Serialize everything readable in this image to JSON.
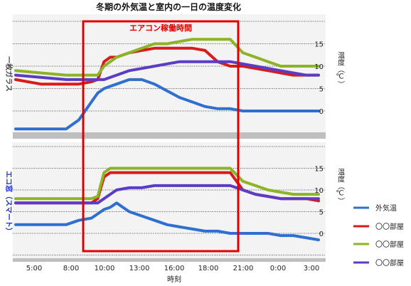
{
  "chart_data": {
    "type": "line",
    "title": "冬期の外気温と室内の一日の温度変化",
    "highlight": {
      "label": "エアコン稼働時間",
      "x_range": [
        "9:00",
        "21:00"
      ],
      "color": "#e00000"
    },
    "xlabel": "時刻",
    "x_ticks": [
      "5:00",
      "8:00",
      "10:00",
      "13:00",
      "16:00",
      "18:00",
      "21:00",
      "0:00",
      "3:00"
    ],
    "ylabel": "温度（℃）",
    "y_ticks": [
      "0",
      "5",
      "10",
      "15"
    ],
    "ylim": [
      -4,
      20
    ],
    "legend": [
      {
        "name": "外気温",
        "color": "#2f6fd0"
      },
      {
        "name": "〇〇部屋",
        "color": "#d81b1b"
      },
      {
        "name": "〇〇部屋",
        "color": "#8db327"
      },
      {
        "name": "〇〇部屋",
        "color": "#5b3cc4"
      }
    ],
    "panels": [
      {
        "label": "一枚ガラス",
        "x": [
          "3:00",
          "5:00",
          "7:00",
          "8:00",
          "9:00",
          "9:30",
          "10:00",
          "10:30",
          "11:00",
          "12:00",
          "13:00",
          "14:00",
          "15:00",
          "16:00",
          "17:00",
          "18:00",
          "19:00",
          "20:00",
          "21:00",
          "22:00",
          "23:00",
          "0:00",
          "1:00",
          "2:00",
          "3:00"
        ],
        "series": [
          {
            "values": [
              -4,
              -4,
              -4,
              -2,
              2,
              4,
              5,
              5.5,
              6,
              7,
              7,
              6,
              4.5,
              3,
              2,
              1,
              0.5,
              0.5,
              0,
              0,
              0,
              0,
              0,
              0,
              0
            ]
          },
          {
            "values": [
              7,
              6,
              6,
              6,
              6.5,
              7,
              11,
              12,
              12,
              13,
              13.5,
              14,
              14,
              14,
              14,
              13.5,
              11,
              10,
              10,
              9.5,
              9,
              8.5,
              8,
              8,
              8
            ]
          },
          {
            "values": [
              9,
              8.5,
              8,
              8,
              8,
              8,
              10,
              11,
              12,
              13,
              14,
              15,
              15,
              15.5,
              16,
              16,
              16,
              16,
              13,
              12,
              11,
              10,
              10,
              10,
              10
            ]
          },
          {
            "values": [
              8,
              7.5,
              7,
              7,
              7,
              7,
              7,
              7.5,
              8,
              9,
              9.5,
              10,
              10.5,
              11,
              11,
              11,
              11,
              11,
              10.5,
              10,
              9.5,
              9,
              8.5,
              8,
              8
            ]
          }
        ]
      },
      {
        "label": "エコ窓（スマート）",
        "x": [
          "3:00",
          "5:00",
          "7:00",
          "8:00",
          "9:00",
          "9:30",
          "10:00",
          "10:30",
          "11:00",
          "12:00",
          "13:00",
          "14:00",
          "15:00",
          "16:00",
          "17:00",
          "18:00",
          "19:00",
          "20:00",
          "21:00",
          "22:00",
          "23:00",
          "0:00",
          "1:00",
          "2:00",
          "3:00"
        ],
        "series": [
          {
            "values": [
              2,
              2,
              2,
              3,
              3.5,
              4.5,
              5.5,
              6,
              7,
              5,
              4,
              3,
              2,
              1.5,
              1,
              0.5,
              0.5,
              0,
              0,
              0,
              0,
              -0.5,
              -0.5,
              -1,
              -1.5
            ]
          },
          {
            "values": [
              7,
              7,
              7,
              7,
              7,
              8,
              13,
              14,
              14,
              14,
              14,
              14,
              14,
              14,
              14,
              14,
              14,
              14,
              10,
              9,
              8.5,
              8,
              8,
              8,
              7.5
            ]
          },
          {
            "values": [
              8,
              8,
              8,
              8,
              8,
              8.5,
              14,
              15,
              15,
              15,
              15,
              15,
              15,
              15,
              15,
              15,
              15,
              15,
              12,
              11,
              10,
              9.5,
              9,
              9,
              9
            ]
          },
          {
            "values": [
              7,
              7,
              7,
              7,
              7,
              7,
              8,
              9,
              10,
              10.5,
              10.5,
              11,
              11,
              11,
              11,
              11,
              11,
              11,
              10,
              9,
              8.5,
              8,
              8,
              8,
              8
            ]
          }
        ]
      }
    ]
  }
}
